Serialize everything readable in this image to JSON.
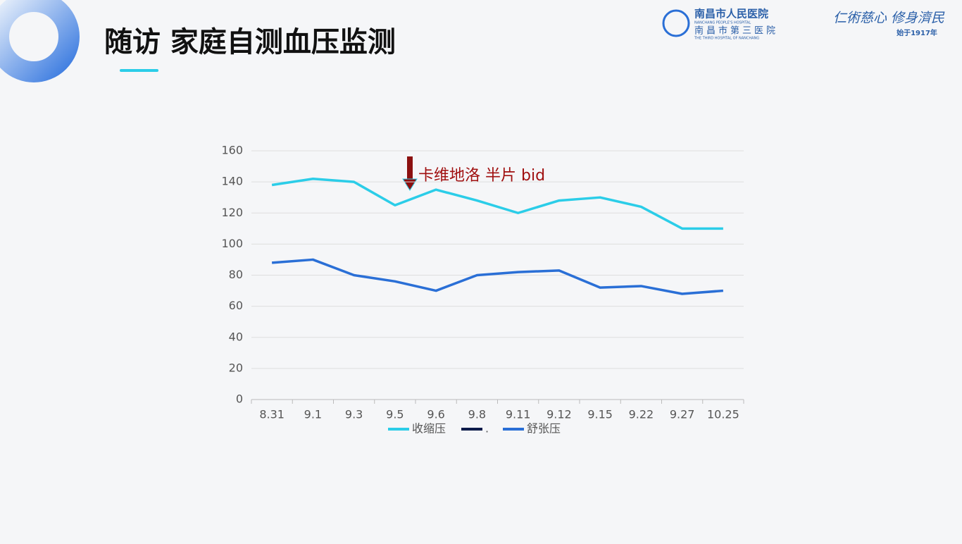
{
  "header": {
    "title": "随访 家庭自测血压监测",
    "logo_cn": "南昌市人民医院",
    "logo_en": "NANCHANG PEOPLE'S HOSPITAL",
    "logo_cn2": "南昌市第三医院",
    "logo_en2": "THE THIRD HOSPITAL OF NANCHANG",
    "slogan": "仁術慈心 修身濟民",
    "since": "始于1917年"
  },
  "chart_data": {
    "type": "line",
    "annotation": "卡维地洛 半片 bid",
    "categories": [
      "8.31",
      "9.1",
      "9.3",
      "9.5",
      "9.6",
      "9.8",
      "9.11",
      "9.12",
      "9.15",
      "9.22",
      "9.27",
      "10.25"
    ],
    "series": [
      {
        "name": "收缩压",
        "color": "#2bcde8",
        "values": [
          138,
          142,
          140,
          125,
          135,
          128,
          120,
          128,
          130,
          124,
          110,
          110
        ]
      },
      {
        "name": ".",
        "color": "#0d1b4a",
        "values": [
          null,
          null,
          null,
          null,
          null,
          null,
          null,
          null,
          null,
          null,
          null,
          null
        ]
      },
      {
        "name": "舒张压",
        "color": "#2a6fd6",
        "values": [
          88,
          90,
          80,
          76,
          70,
          80,
          82,
          83,
          72,
          73,
          68,
          70
        ]
      }
    ],
    "ylim": [
      0,
      160
    ],
    "yticks": [
      0,
      20,
      40,
      60,
      80,
      100,
      120,
      140,
      160
    ],
    "grid": true,
    "legend": "bottom"
  }
}
